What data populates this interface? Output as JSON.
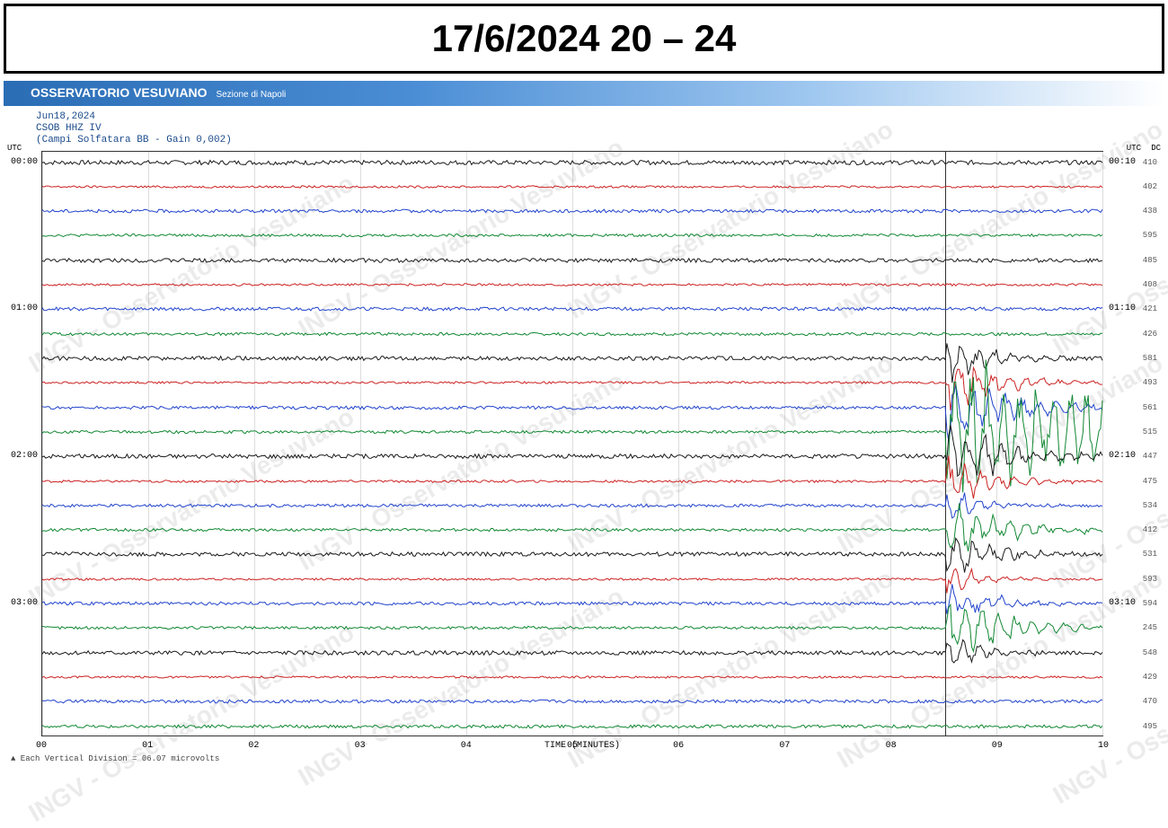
{
  "title": "17/6/2024 20 – 24",
  "org": "OSSERVATORIO VESUVIANO",
  "org_sub": "Sezione di Napoli",
  "meta": {
    "line1": "Jun18,2024",
    "line2": "CSOB HHZ IV",
    "line3": "(Campi Solfatara BB - Gain 0,002)"
  },
  "axis": {
    "utc": "UTC",
    "dc": "DC",
    "x_title": "TIME (MINUTES)",
    "x_ticks": [
      "00",
      "01",
      "02",
      "03",
      "04",
      "05",
      "06",
      "07",
      "08",
      "09",
      "10"
    ],
    "footnote": "▲  Each Vertical Division =  06.07 microvolts"
  },
  "watermark_text": "INGV - Osservatorio Vesuviano",
  "colors": {
    "black": "#1a1a1a",
    "red": "#cc2222",
    "blue": "#2244cc",
    "green": "#118833",
    "grid": "#dddddd"
  },
  "traces": [
    {
      "left_label": "00:00",
      "right_time": "00:10",
      "dc": "410",
      "color": "black",
      "noise": 2.5,
      "event": null
    },
    {
      "left_label": "",
      "right_time": "",
      "dc": "402",
      "color": "red",
      "noise": 1.2,
      "event": null
    },
    {
      "left_label": "",
      "right_time": "",
      "dc": "438",
      "color": "blue",
      "noise": 1.8,
      "event": null
    },
    {
      "left_label": "",
      "right_time": "",
      "dc": "595",
      "color": "green",
      "noise": 1.5,
      "event": null
    },
    {
      "left_label": "",
      "right_time": "",
      "dc": "485",
      "color": "black",
      "noise": 2.2,
      "event": null
    },
    {
      "left_label": "",
      "right_time": "",
      "dc": "408",
      "color": "red",
      "noise": 1.3,
      "event": null
    },
    {
      "left_label": "01:00",
      "right_time": "01:10",
      "dc": "421",
      "color": "blue",
      "noise": 1.9,
      "event": null
    },
    {
      "left_label": "",
      "right_time": "",
      "dc": "426",
      "color": "green",
      "noise": 1.6,
      "event": null
    },
    {
      "left_label": "",
      "right_time": "",
      "dc": "581",
      "color": "black",
      "noise": 2.3,
      "event": {
        "start": 0.852,
        "peak_amp": 18,
        "decay": 0.04
      }
    },
    {
      "left_label": "",
      "right_time": "",
      "dc": "493",
      "color": "red",
      "noise": 1.2,
      "event": {
        "start": 0.852,
        "peak_amp": 22,
        "decay": 0.05
      }
    },
    {
      "left_label": "",
      "right_time": "",
      "dc": "561",
      "color": "blue",
      "noise": 1.8,
      "event": {
        "start": 0.852,
        "peak_amp": 28,
        "decay": 0.06
      }
    },
    {
      "left_label": "",
      "right_time": "",
      "dc": "515",
      "color": "green",
      "noise": 1.6,
      "event": {
        "start": 0.852,
        "peak_amp": 60,
        "decay": 0.15
      }
    },
    {
      "left_label": "02:00",
      "right_time": "02:10",
      "dc": "447",
      "color": "black",
      "noise": 2.4,
      "event": {
        "start": 0.852,
        "peak_amp": 30,
        "decay": 0.05
      }
    },
    {
      "left_label": "",
      "right_time": "",
      "dc": "475",
      "color": "red",
      "noise": 1.3,
      "event": {
        "start": 0.852,
        "peak_amp": 20,
        "decay": 0.04
      }
    },
    {
      "left_label": "",
      "right_time": "",
      "dc": "534",
      "color": "blue",
      "noise": 1.7,
      "event": {
        "start": 0.852,
        "peak_amp": 15,
        "decay": 0.03
      }
    },
    {
      "left_label": "",
      "right_time": "",
      "dc": "412",
      "color": "green",
      "noise": 1.6,
      "event": {
        "start": 0.852,
        "peak_amp": 25,
        "decay": 0.05
      }
    },
    {
      "left_label": "",
      "right_time": "",
      "dc": "531",
      "color": "black",
      "noise": 2.3,
      "event": {
        "start": 0.852,
        "peak_amp": 20,
        "decay": 0.04
      }
    },
    {
      "left_label": "",
      "right_time": "",
      "dc": "593",
      "color": "red",
      "noise": 1.2,
      "event": {
        "start": 0.852,
        "peak_amp": 14,
        "decay": 0.03
      }
    },
    {
      "left_label": "03:00",
      "right_time": "03:10",
      "dc": "594",
      "color": "blue",
      "noise": 1.8,
      "event": {
        "start": 0.852,
        "peak_amp": 18,
        "decay": 0.04
      }
    },
    {
      "left_label": "",
      "right_time": "",
      "dc": "245",
      "color": "green",
      "noise": 1.6,
      "event": {
        "start": 0.852,
        "peak_amp": 30,
        "decay": 0.05
      }
    },
    {
      "left_label": "",
      "right_time": "",
      "dc": "548",
      "color": "black",
      "noise": 2.3,
      "event": {
        "start": 0.852,
        "peak_amp": 15,
        "decay": 0.03
      }
    },
    {
      "left_label": "",
      "right_time": "",
      "dc": "429",
      "color": "red",
      "noise": 1.2,
      "event": null
    },
    {
      "left_label": "",
      "right_time": "",
      "dc": "470",
      "color": "blue",
      "noise": 1.8,
      "event": null
    },
    {
      "left_label": "",
      "right_time": "",
      "dc": "495",
      "color": "green",
      "noise": 1.8,
      "event": null
    }
  ],
  "event_marker_x": 0.852
}
